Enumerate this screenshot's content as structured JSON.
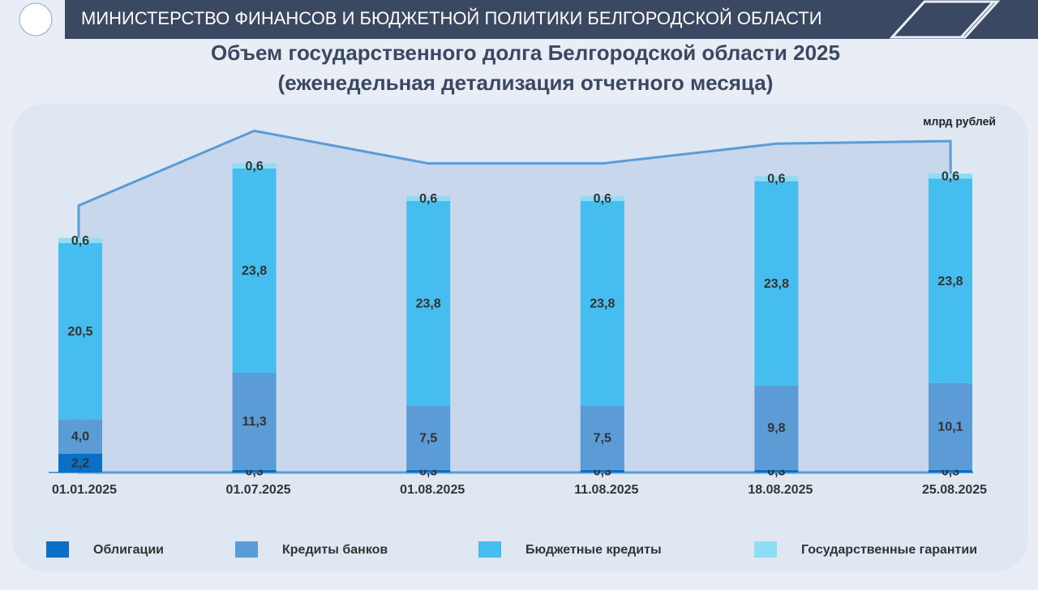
{
  "header": {
    "title": "МИНИСТЕРСТВО ФИНАНСОВ И БЮДЖЕТНОЙ ПОЛИТИКИ БЕЛГОРОДСКОЙ ОБЛАСТИ"
  },
  "chart_data": {
    "type": "stacked-bar",
    "title": "Объем государственного долга Белгородской области 2025",
    "subtitle": "(еженедельная детализация отчетного месяца)",
    "unit_label": "млрд рублей",
    "categories": [
      "01.01.2025",
      "01.07.2025",
      "01.08.2025",
      "11.08.2025",
      "18.08.2025",
      "25.08.2025"
    ],
    "series": [
      {
        "name": "Облигации",
        "color": "#0a6fc6",
        "values": [
          2.2,
          0.3,
          0.3,
          0.3,
          0.3,
          0.3
        ],
        "value_labels": [
          "2,2",
          "0,3",
          "0,3",
          "0,3",
          "0,3",
          "0,3"
        ]
      },
      {
        "name": "Кредиты банков",
        "color": "#5b9bd6",
        "values": [
          4.0,
          11.3,
          7.5,
          7.5,
          9.8,
          10.1
        ],
        "value_labels": [
          "4,0",
          "11,3",
          "7,5",
          "7,5",
          "9,8",
          "10,1"
        ]
      },
      {
        "name": "Бюджетные кредиты",
        "color": "#45bdee",
        "values": [
          20.5,
          23.8,
          23.8,
          23.8,
          23.8,
          23.8
        ],
        "value_labels": [
          "20,5",
          "23,8",
          "23,8",
          "23,8",
          "23,8",
          "23,8"
        ]
      },
      {
        "name": "Государственные гарантии",
        "color": "#8fdcf5",
        "values": [
          0.6,
          0.6,
          0.6,
          0.6,
          0.6,
          0.6
        ],
        "value_labels": [
          "0,6",
          "0,6",
          "0,6",
          "0,6",
          "0,6",
          "0,6"
        ]
      }
    ],
    "legend": "bottom"
  }
}
